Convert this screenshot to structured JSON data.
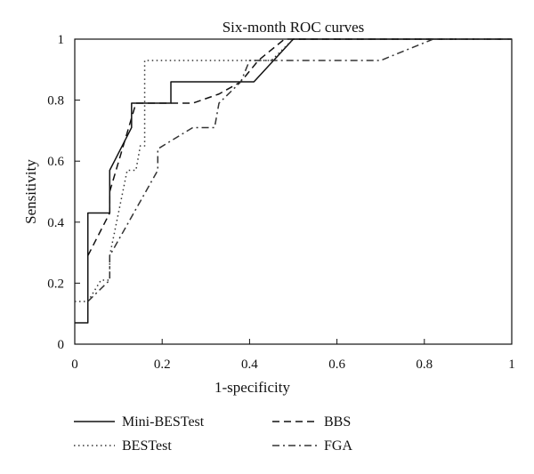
{
  "chart_data": {
    "type": "line",
    "title": "Six-month ROC curves",
    "xlabel": "1-specificity",
    "ylabel": "Sensitivity",
    "xlim": [
      0,
      1
    ],
    "ylim": [
      0,
      1
    ],
    "x_ticks": [
      0,
      0.2,
      0.4,
      0.6,
      0.8,
      1
    ],
    "y_ticks": [
      0,
      0.2,
      0.4,
      0.6,
      0.8,
      1
    ],
    "x_tick_labels": [
      "0",
      "0.2",
      "0.4",
      "0.6",
      "0.8",
      "1"
    ],
    "y_tick_labels": [
      "0",
      "0.2",
      "0.4",
      "0.6",
      "0.8",
      "1"
    ],
    "grid": false,
    "legend_placement": "below",
    "series": [
      {
        "name": "Mini-BESTest",
        "dash": "solid",
        "color": "#111111",
        "points": [
          [
            0,
            0.07
          ],
          [
            0.03,
            0.07
          ],
          [
            0.03,
            0.43
          ],
          [
            0.08,
            0.43
          ],
          [
            0.08,
            0.57
          ],
          [
            0.13,
            0.71
          ],
          [
            0.13,
            0.79
          ],
          [
            0.22,
            0.79
          ],
          [
            0.22,
            0.86
          ],
          [
            0.41,
            0.86
          ],
          [
            0.5,
            1.0
          ],
          [
            0.51,
            1.0
          ],
          [
            1.0,
            1.0
          ]
        ]
      },
      {
        "name": "BESTest",
        "dash": "dotted",
        "color": "#333333",
        "points": [
          [
            0,
            0.14
          ],
          [
            0.03,
            0.14
          ],
          [
            0.06,
            0.21
          ],
          [
            0.08,
            0.21
          ],
          [
            0.08,
            0.29
          ],
          [
            0.12,
            0.57
          ],
          [
            0.14,
            0.57
          ],
          [
            0.15,
            0.65
          ],
          [
            0.16,
            0.65
          ],
          [
            0.16,
            0.93
          ],
          [
            0.45,
            0.93
          ],
          [
            0.5,
            1.0
          ],
          [
            1.0,
            1.0
          ]
        ]
      },
      {
        "name": "BBS",
        "dash": "dashed",
        "color": "#111111",
        "points": [
          [
            0.03,
            0.29
          ],
          [
            0.08,
            0.43
          ],
          [
            0.08,
            0.5
          ],
          [
            0.14,
            0.79
          ],
          [
            0.27,
            0.79
          ],
          [
            0.33,
            0.82
          ],
          [
            0.38,
            0.86
          ],
          [
            0.42,
            0.93
          ],
          [
            0.48,
            1.0
          ],
          [
            0.51,
            1.0
          ],
          [
            1.0,
            1.0
          ]
        ]
      },
      {
        "name": "FGA",
        "dash": "dashdot",
        "color": "#333333",
        "points": [
          [
            0.03,
            0.14
          ],
          [
            0.08,
            0.21
          ],
          [
            0.08,
            0.29
          ],
          [
            0.19,
            0.57
          ],
          [
            0.19,
            0.64
          ],
          [
            0.27,
            0.71
          ],
          [
            0.32,
            0.71
          ],
          [
            0.33,
            0.79
          ],
          [
            0.38,
            0.86
          ],
          [
            0.4,
            0.93
          ],
          [
            0.7,
            0.93
          ],
          [
            0.82,
            1.0
          ],
          [
            1.0,
            1.0
          ]
        ]
      }
    ]
  }
}
